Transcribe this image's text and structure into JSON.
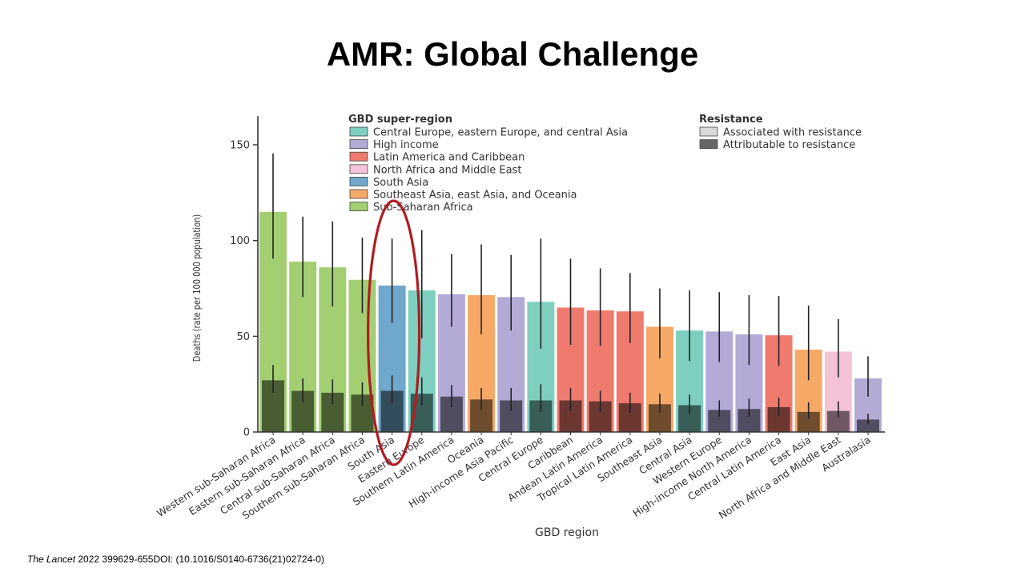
{
  "slide": {
    "title": "AMR: Global Challenge",
    "citation_journal": "The Lancet",
    "citation_rest": " 2022 399629-655DOI: (10.1016/S0140-6736(21)02724-0)"
  },
  "chart_data": {
    "type": "bar",
    "xlabel": "GBD region",
    "ylabel": "Deaths (rate per 100 000 population)",
    "ylim": [
      0,
      165
    ],
    "yticks": [
      0,
      50,
      100,
      150
    ],
    "legend_superregion_title": "GBD super-region",
    "legend_resistance_title": "Resistance",
    "super_regions": [
      {
        "key": "ceeca",
        "name": "Central Europe, eastern Europe, and central Asia",
        "color": "#7ecfc0"
      },
      {
        "key": "hi",
        "name": "High income",
        "color": "#b3aad6"
      },
      {
        "key": "lac",
        "name": "Latin America and Caribbean",
        "color": "#ef7b6e"
      },
      {
        "key": "name",
        "name": "North Africa and Middle East",
        "color": "#f5c3d8"
      },
      {
        "key": "sa",
        "name": "South Asia",
        "color": "#6fa8cc"
      },
      {
        "key": "seao",
        "name": "Southeast Asia, east Asia, and Oceania",
        "color": "#f6a866"
      },
      {
        "key": "ssa",
        "name": "Sub-Saharan Africa",
        "color": "#a3cf72"
      }
    ],
    "resistance_legend": [
      {
        "name": "Associated with resistance",
        "color": "#d9d9d9"
      },
      {
        "name": "Attributable to resistance",
        "color": "#666666"
      }
    ],
    "categories": [
      "Western sub-Saharan Africa",
      "Eastern sub-Saharan Africa",
      "Central sub-Saharan Africa",
      "Southern sub-Saharan Africa",
      "South Asia",
      "Eastern Europe",
      "Southern Latin America",
      "Oceania",
      "High-income Asia Pacific",
      "Central Europe",
      "Caribbean",
      "Andean Latin America",
      "Tropical Latin America",
      "Southeast Asia",
      "Central Asia",
      "Western Europe",
      "High-income North America",
      "Central Latin America",
      "East Asia",
      "North Africa and Middle East",
      "Australasia"
    ],
    "category_super_region": [
      "ssa",
      "ssa",
      "ssa",
      "ssa",
      "sa",
      "ceeca",
      "hi",
      "seao",
      "hi",
      "ceeca",
      "lac",
      "lac",
      "lac",
      "seao",
      "ceeca",
      "hi",
      "hi",
      "lac",
      "seao",
      "name",
      "hi"
    ],
    "series": [
      {
        "name": "Associated with resistance",
        "values": [
          115,
          89,
          86,
          79.5,
          76.5,
          74,
          72,
          71.5,
          70.5,
          68,
          65,
          63.5,
          63,
          55,
          53,
          52.5,
          51,
          50.5,
          43,
          42,
          28
        ],
        "lower": [
          90.5,
          70.5,
          65.5,
          62,
          57,
          49,
          55,
          51,
          53,
          43.5,
          45.5,
          45,
          46.5,
          38.5,
          37,
          36.5,
          35,
          34.5,
          27,
          28.5,
          18.5
        ],
        "upper": [
          145.5,
          112.5,
          110,
          101.5,
          101,
          105.5,
          93,
          98,
          92.5,
          101,
          90.5,
          85.5,
          83,
          75,
          74,
          73,
          71.5,
          71,
          66,
          59,
          39.5
        ]
      },
      {
        "name": "Attributable to resistance",
        "values": [
          27,
          21.5,
          20.5,
          19.5,
          21.5,
          20,
          18.5,
          17,
          16.5,
          16.5,
          16.5,
          16,
          15,
          14.5,
          14,
          11.5,
          12,
          13,
          10.5,
          11,
          6.5
        ],
        "lower": [
          20.5,
          15.5,
          14.5,
          13.5,
          15,
          14,
          13,
          11.5,
          11,
          10.5,
          11,
          10.5,
          10,
          10,
          9.5,
          8,
          8,
          8.5,
          7,
          7.5,
          4
        ],
        "upper": [
          35,
          28,
          27.5,
          26,
          29.5,
          28.5,
          24.5,
          23,
          23,
          25,
          23,
          21.5,
          20.5,
          20,
          19.5,
          16.5,
          17.5,
          18,
          15.5,
          16,
          9.5
        ]
      }
    ],
    "highlight": {
      "category": "South Asia",
      "shape": "ellipse",
      "color": "#b01c22"
    }
  }
}
